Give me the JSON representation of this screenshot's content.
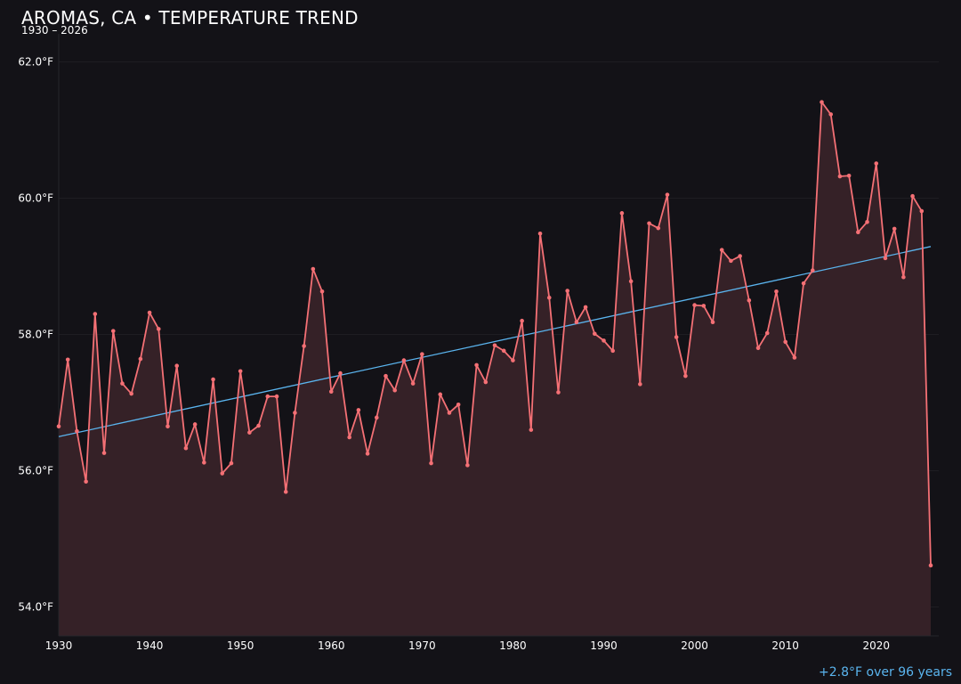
{
  "header": {
    "title": "AROMAS, CA • TEMPERATURE TREND",
    "subtitle": "1930 – 2026"
  },
  "footnote": "+2.8°F over 96 years",
  "colors": {
    "background": "#131217",
    "series_line": "#f47075",
    "area_fill": "#352127",
    "trend_line": "#5ab4ee",
    "text": "#ffffff",
    "grid": "#1e1d22"
  },
  "chart_data": {
    "type": "line",
    "title": "AROMAS, CA • TEMPERATURE TREND",
    "subtitle": "1930 – 2026",
    "xlabel": "",
    "ylabel": "",
    "xlim": [
      1930,
      2026
    ],
    "ylim": [
      53.6,
      62.4
    ],
    "x_ticks": [
      1930,
      1940,
      1950,
      1960,
      1970,
      1980,
      1990,
      2000,
      2010,
      2020
    ],
    "y_ticks": [
      54.0,
      56.0,
      58.0,
      60.0,
      62.0
    ],
    "y_tick_labels": [
      "54.0°F",
      "56.0°F",
      "58.0°F",
      "60.0°F",
      "62.0°F"
    ],
    "grid": true,
    "area_fill": true,
    "series": [
      {
        "x": [
          1930,
          1931,
          1932,
          1933,
          1934,
          1935,
          1936,
          1937,
          1938,
          1939,
          1940,
          1941,
          1942,
          1943,
          1944,
          1945,
          1946,
          1947,
          1948,
          1949,
          1950,
          1951,
          1952,
          1953,
          1954,
          1955,
          1956,
          1957,
          1958,
          1959,
          1960,
          1961,
          1962,
          1963,
          1964,
          1965,
          1966,
          1967,
          1968,
          1969,
          1970,
          1971,
          1972,
          1973,
          1974,
          1975,
          1976,
          1977,
          1978,
          1979,
          1980,
          1981,
          1982,
          1983,
          1984,
          1985,
          1986,
          1987,
          1988,
          1989,
          1990,
          1991,
          1992,
          1993,
          1994,
          1995,
          1996,
          1997,
          1998,
          1999,
          2000,
          2001,
          2002,
          2003,
          2004,
          2005,
          2006,
          2007,
          2008,
          2009,
          2010,
          2011,
          2012,
          2013,
          2014,
          2015,
          2016,
          2017,
          2018,
          2019,
          2020,
          2021,
          2022,
          2023,
          2024,
          2025,
          2026
        ],
        "values": [
          56.65,
          57.63,
          56.58,
          55.84,
          58.3,
          56.26,
          58.05,
          57.28,
          57.13,
          57.64,
          58.32,
          58.08,
          56.65,
          57.54,
          56.33,
          56.68,
          56.12,
          57.34,
          55.96,
          56.11,
          57.46,
          56.56,
          56.66,
          57.09,
          57.09,
          55.69,
          56.85,
          57.83,
          58.96,
          58.63,
          57.16,
          57.43,
          56.49,
          56.89,
          56.25,
          56.78,
          57.39,
          57.18,
          57.62,
          57.28,
          57.71,
          56.11,
          57.12,
          56.85,
          56.97,
          56.08,
          57.55,
          57.3,
          57.84,
          57.76,
          57.62,
          58.2,
          56.6,
          59.48,
          58.54,
          57.15,
          58.64,
          58.18,
          58.4,
          58.01,
          57.91,
          57.76,
          59.78,
          58.78,
          57.27,
          59.63,
          59.56,
          60.05,
          57.96,
          57.39,
          58.43,
          58.42,
          58.18,
          59.24,
          59.08,
          59.15,
          58.5,
          57.8,
          58.02,
          58.63,
          57.89,
          57.66,
          58.75,
          58.94,
          61.41,
          61.23,
          60.32,
          60.33,
          59.5,
          59.65,
          60.51,
          59.12,
          59.55,
          58.84,
          60.03,
          59.81,
          54.61
        ]
      }
    ],
    "trend": {
      "x": [
        1930,
        2026
      ],
      "y": [
        56.5,
        59.29
      ]
    },
    "annotation": "+2.8°F over 96 years"
  }
}
